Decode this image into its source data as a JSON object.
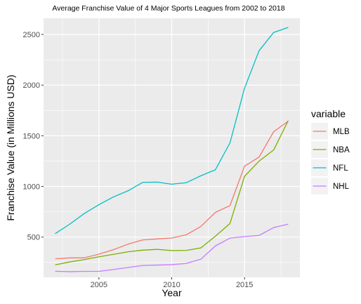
{
  "chart_data": {
    "type": "line",
    "title": "Average Franchise Value of 4 Major Sports Leagues from 2002 to 2018",
    "xlabel": "Year",
    "ylabel": "Franchise Value (in Millions USD)",
    "x": [
      2002,
      2003,
      2004,
      2005,
      2006,
      2007,
      2008,
      2009,
      2010,
      2011,
      2012,
      2013,
      2014,
      2015,
      2016,
      2017,
      2018
    ],
    "xlim": [
      2001.2,
      2018.8
    ],
    "ylim": [
      103,
      2660
    ],
    "x_ticks": [
      2005,
      2010,
      2015
    ],
    "x_tick_labels": [
      "2005",
      "2010",
      "2015"
    ],
    "y_ticks": [
      500,
      1000,
      1500,
      2000,
      2500
    ],
    "y_tick_labels": [
      "500",
      "1000",
      "1500",
      "2000",
      "2500"
    ],
    "grid": true,
    "legend": {
      "title": "variable",
      "position": "right"
    },
    "series": [
      {
        "name": "MLB",
        "color": "#f8766d",
        "values": [
          286,
          295,
          295,
          332,
          376,
          430,
          472,
          482,
          491,
          523,
          605,
          744,
          811,
          1200,
          1290,
          1540,
          1645
        ]
      },
      {
        "name": "NBA",
        "color": "#7cae00",
        "values": [
          226,
          255,
          278,
          306,
          330,
          355,
          371,
          379,
          367,
          369,
          393,
          509,
          634,
          1100,
          1250,
          1360,
          1650
        ]
      },
      {
        "name": "NFL",
        "color": "#00bfc4",
        "values": [
          534,
          628,
          733,
          820,
          897,
          957,
          1040,
          1043,
          1022,
          1037,
          1105,
          1165,
          1430,
          1970,
          2340,
          2520,
          2570
        ]
      },
      {
        "name": "NHL",
        "color": "#c77cff",
        "values": [
          163,
          159,
          162,
          162,
          180,
          200,
          220,
          224,
          228,
          240,
          282,
          413,
          490,
          505,
          517,
          594,
          628
        ]
      }
    ]
  }
}
